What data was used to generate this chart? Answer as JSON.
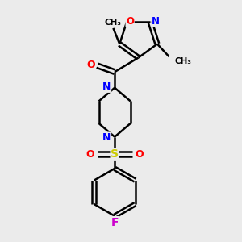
{
  "bg_color": "#ebebeb",
  "bond_color": "#000000",
  "N_color": "#0000ff",
  "O_color": "#ff0000",
  "F_color": "#cc00cc",
  "S_color": "#cccc00",
  "line_width": 1.8,
  "fig_size": [
    3.0,
    3.0
  ],
  "dpi": 100,
  "xlim": [
    0,
    3.0
  ],
  "ylim": [
    0,
    3.0
  ]
}
